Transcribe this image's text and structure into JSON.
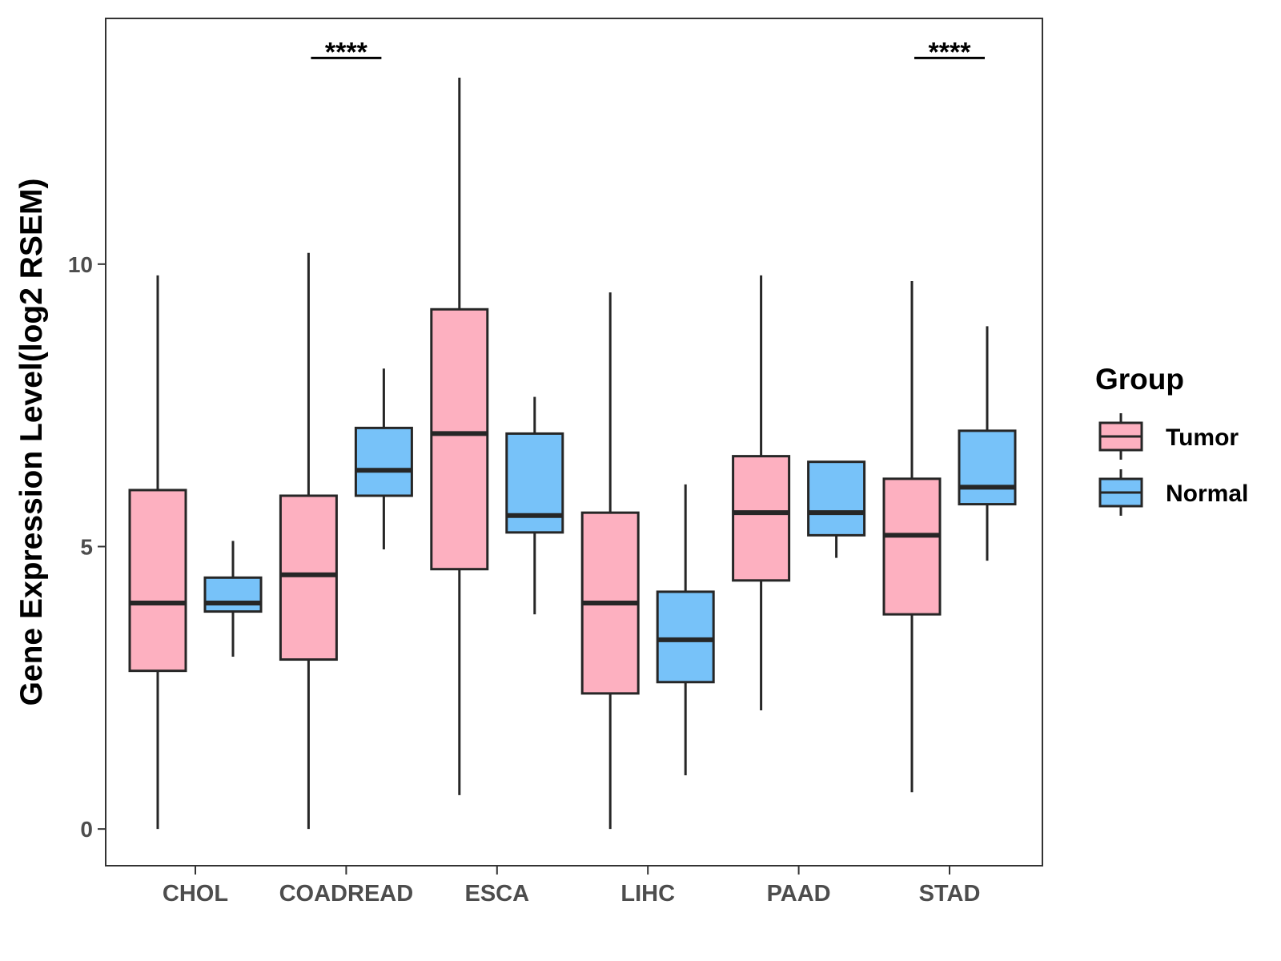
{
  "chart_data": {
    "type": "boxplot",
    "title": "",
    "xlabel": "",
    "ylabel": "Gene Expression Level(log2 RSEM)",
    "ylim": [
      -0.65,
      14.35
    ],
    "yticks": [
      0,
      5,
      10
    ],
    "ytick_labels": [
      "0",
      "5",
      "10"
    ],
    "categories": [
      "CHOL",
      "COADREAD",
      "ESCA",
      "LIHC",
      "PAAD",
      "STAD"
    ],
    "series": [
      {
        "name": "Tumor",
        "color": "#FDB0C0",
        "boxes": [
          {
            "whisker_low": 0.0,
            "q1": 2.8,
            "median": 4.0,
            "q3": 6.0,
            "whisker_high": 9.8
          },
          {
            "whisker_low": 0.0,
            "q1": 3.0,
            "median": 4.5,
            "q3": 5.9,
            "whisker_high": 10.2
          },
          {
            "whisker_low": 0.6,
            "q1": 4.6,
            "median": 7.0,
            "q3": 9.2,
            "whisker_high": 13.3
          },
          {
            "whisker_low": 0.0,
            "q1": 2.4,
            "median": 4.0,
            "q3": 5.6,
            "whisker_high": 9.5
          },
          {
            "whisker_low": 2.1,
            "q1": 4.4,
            "median": 5.6,
            "q3": 6.6,
            "whisker_high": 9.8
          },
          {
            "whisker_low": 0.65,
            "q1": 3.8,
            "median": 5.2,
            "q3": 6.2,
            "whisker_high": 9.7
          }
        ]
      },
      {
        "name": "Normal",
        "color": "#77C2F9",
        "boxes": [
          {
            "whisker_low": 3.05,
            "q1": 3.85,
            "median": 4.0,
            "q3": 4.45,
            "whisker_high": 5.1
          },
          {
            "whisker_low": 4.95,
            "q1": 5.9,
            "median": 6.35,
            "q3": 7.1,
            "whisker_high": 8.15
          },
          {
            "whisker_low": 3.8,
            "q1": 5.25,
            "median": 5.55,
            "q3": 7.0,
            "whisker_high": 7.65
          },
          {
            "whisker_low": 0.95,
            "q1": 2.6,
            "median": 3.35,
            "q3": 4.2,
            "whisker_high": 6.1
          },
          {
            "whisker_low": 4.8,
            "q1": 5.2,
            "median": 5.6,
            "q3": 6.5,
            "whisker_high": 6.5
          },
          {
            "whisker_low": 4.75,
            "q1": 5.75,
            "median": 6.05,
            "q3": 7.05,
            "whisker_high": 8.9
          }
        ]
      }
    ],
    "significance": [
      {
        "category": "COADREAD",
        "label": "****",
        "y": 13.65
      },
      {
        "category": "STAD",
        "label": "****",
        "y": 13.65
      }
    ],
    "legend": {
      "title": "Group",
      "position": "right",
      "entries": [
        "Tumor",
        "Normal"
      ]
    },
    "grid": false
  }
}
